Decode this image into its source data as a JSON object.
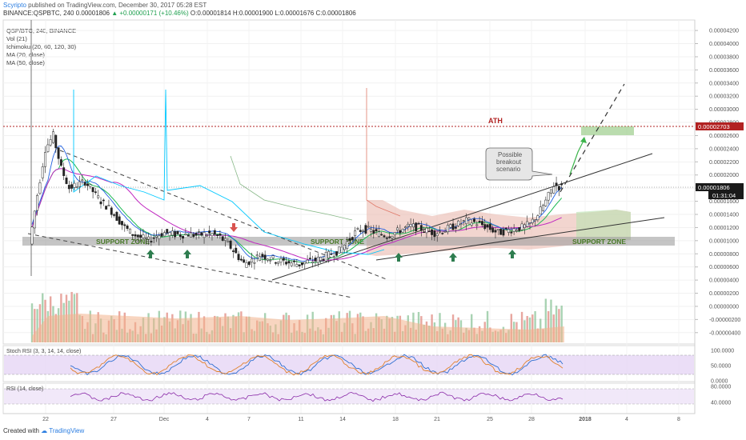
{
  "header": {
    "author": "Scyripto",
    "published": "published on TradingView.com, December 30, 2017 05:28 EST",
    "symbol": "BINANCE:QSPBTC, 240",
    "last": "0.00001806",
    "change": "▲ +0.00000171 (+10.46%)",
    "ohlc": "O:0.00001814 H:0.00001900 L:0.00001676 C:0.00001806"
  },
  "legend": [
    "QSP/BTC, 240, BINANCE",
    "Vol (21)",
    "Ichimoku (20, 60, 120, 30)",
    "MA (20, close)",
    "MA (50, close)"
  ],
  "annotations": {
    "ath": "ATH",
    "support1": "SUPPORT ZONE",
    "support2": "SUPPORT ZONE",
    "support3": "SUPPORT ZONE",
    "breakout": "Possible breakout scenario"
  },
  "price_tags": {
    "ath": "0.00002703",
    "last": "0.00001806",
    "timer": "01:31:04"
  },
  "stoch_label": "Stoch RSI (3, 3, 14, 14, close)",
  "rsi_label": "RSI (14, close)",
  "footer": {
    "created": "Created with",
    "brand": "TradingView"
  },
  "colors": {
    "ath": "#b22222",
    "support": "#4a7a2a",
    "arrow_up": "#2e7d4f",
    "arrow_down": "#d9534f",
    "ma20": "#1db954",
    "ma50": "#c028c0",
    "conv": "#00c8ff",
    "base": "#2060e0"
  },
  "chart_data": [
    {
      "type": "candlestick",
      "title": "QSP/BTC, 240, BINANCE",
      "x_ticks": [
        "22",
        "27",
        "Dec",
        "4",
        "7",
        "11",
        "14",
        "18",
        "21",
        "25",
        "28",
        "2018",
        "4",
        "8"
      ],
      "y_ticks": [
        "0.00004200",
        "0.00004000",
        "0.00003800",
        "0.00003600",
        "0.00003400",
        "0.00003200",
        "0.00003000",
        "0.00002800",
        "0.00002600",
        "0.00002400",
        "0.00002200",
        "0.00002000",
        "0.00001800",
        "0.00001600",
        "0.00001400",
        "0.00001200",
        "0.00001000",
        "0.00000800",
        "0.00000600",
        "0.00000400",
        "0.00000200",
        "0.00000000",
        "-0.00000200",
        "-0.00000400"
      ],
      "ylim": [
        -5e-06,
        4.25e-05
      ],
      "ath": 2.703e-05,
      "last": 1.806e-05,
      "price_path": [
        9.5e-06,
        1.7e-05,
        2.4e-05,
        2.6e-05,
        2.1e-05,
        1.8e-05,
        1.85e-05,
        1.9e-05,
        1.75e-05,
        1.6e-05,
        1.5e-05,
        1.35e-05,
        1.2e-05,
        1.1e-05,
        1.05e-05,
        1e-05,
        1.08e-05,
        1.12e-05,
        1.1e-05,
        1.09e-05,
        1.1e-05,
        1.08e-05,
        1.1e-05,
        1.1e-05,
        1.05e-05,
        9.5e-06,
        8e-06,
        6.5e-06,
        7e-06,
        7.8e-06,
        7.5e-06,
        7e-06,
        6.8e-06,
        6.6e-06,
        6.4e-06,
        6.8e-06,
        7e-06,
        7.5e-06,
        8e-06,
        8.5e-06,
        9.8e-06,
        1.12e-05,
        1.18e-05,
        1.15e-05,
        1.1e-05,
        1.08e-05,
        1.12e-05,
        1.18e-05,
        1.22e-05,
        1.2e-05,
        1.15e-05,
        1.12e-05,
        1.15e-05,
        1.2e-05,
        1.25e-05,
        1.3e-05,
        1.28e-05,
        1.24e-05,
        1.18e-05,
        1.12e-05,
        1.15e-05,
        1.18e-05,
        1.2e-05,
        1.25e-05,
        1.4e-05,
        1.6e-05,
        1.85e-05,
        1.81e-05
      ]
    },
    {
      "type": "line",
      "title": "Stoch RSI (3, 3, 14, 14, close)",
      "y_ticks": [
        "100.0000",
        "50.0000",
        "0.0000"
      ]
    },
    {
      "type": "line",
      "title": "RSI (14, close)",
      "y_ticks": [
        "80.0000",
        "40.0000"
      ]
    }
  ]
}
